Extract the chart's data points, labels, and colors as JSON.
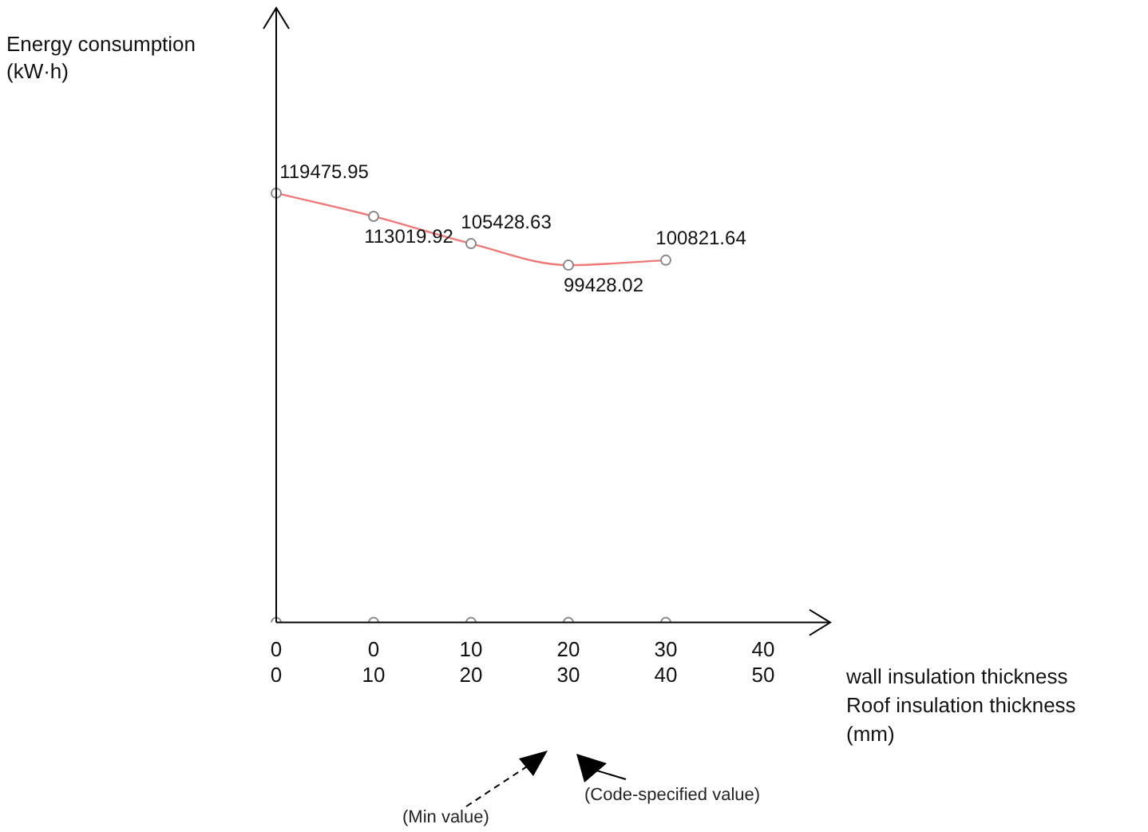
{
  "chart_data": {
    "type": "line",
    "ylabel": "Energy consumption\n(kW·h)",
    "xlabel": "wall insulation thickness\nRoof insulation thickness\n(mm)",
    "categories": [
      "0\n0",
      "0\n10",
      "10\n20",
      "20\n30",
      "30\n40",
      "40\n50"
    ],
    "series": [
      {
        "color": "#f07878",
        "values": [
          119475.95,
          113019.92,
          105428.63,
          99428.02,
          100821.64,
          null
        ],
        "value_labels": [
          "119475.95",
          "113019.92",
          "105428.63",
          "99428.02",
          "100821.64",
          null
        ]
      },
      {
        "type": "scatter",
        "color": "#888888",
        "values": [
          0,
          0,
          0,
          0,
          0,
          null
        ]
      }
    ],
    "ylim": [
      0,
      171000
    ],
    "tick_labels": "x",
    "grid": false,
    "legend": false,
    "marker": "circle",
    "annotations": [
      "(Min value)",
      "(Code-specified value)"
    ]
  }
}
